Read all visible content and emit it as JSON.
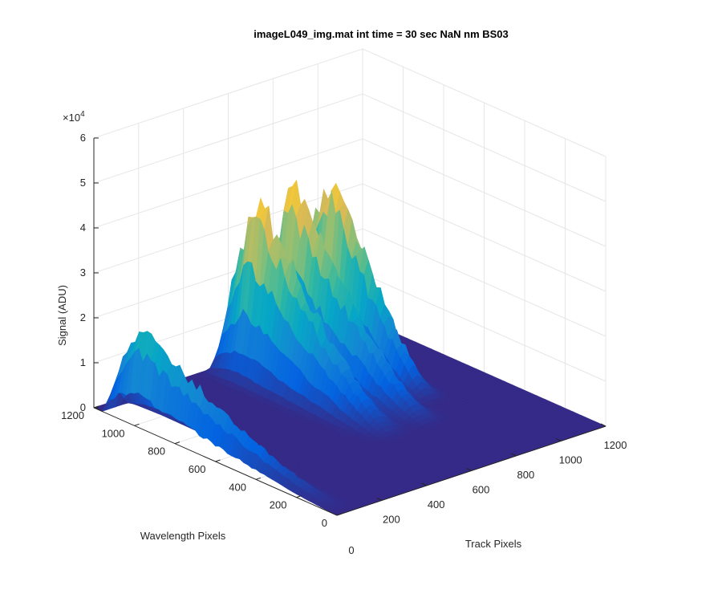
{
  "chart_data": {
    "type": "surface",
    "title": "imageL049_img.mat int time = 30 sec  NaN nm BS03",
    "xlabel": "Track Pixels",
    "ylabel": "Wavelength Pixels",
    "zlabel": "Signal (ADU)",
    "z_exponent_label": "×10",
    "z_exponent_power": "4",
    "xlim": [
      0,
      1200
    ],
    "ylim": [
      0,
      1200
    ],
    "zlim": [
      0,
      60000
    ],
    "x_ticks": [
      "200",
      "400",
      "600",
      "800",
      "1000",
      "1200"
    ],
    "x_tick_values": [
      200,
      400,
      600,
      800,
      1000,
      1200
    ],
    "x_zero_label": "0",
    "y_ticks": [
      "0",
      "200",
      "400",
      "600",
      "800",
      "1000",
      "1200"
    ],
    "y_tick_values": [
      0,
      200,
      400,
      600,
      800,
      1000,
      1200
    ],
    "z_ticks": [
      "0",
      "1",
      "2",
      "3",
      "4",
      "5",
      "6"
    ],
    "z_tick_values": [
      0,
      10000,
      20000,
      30000,
      40000,
      50000,
      60000
    ],
    "grid": true,
    "colormap": "parula",
    "colors": [
      "#352a87",
      "#0363e1",
      "#1485d4",
      "#06a7c6",
      "#38b99e",
      "#92bf73",
      "#d9ba56",
      "#fcce2e",
      "#f9fb0e"
    ],
    "peaks": [
      {
        "x_center": 40,
        "x_width": 60,
        "y_start": 0,
        "y_end": 1150,
        "y_peak": 1000,
        "height": 21000
      },
      {
        "x_center": 600,
        "x_width": 90,
        "y_start": 350,
        "y_end": 1200,
        "y_peak": 1050,
        "height": 41000
      },
      {
        "x_center": 760,
        "x_width": 80,
        "y_start": 350,
        "y_end": 1200,
        "y_peak": 1050,
        "height": 41000
      },
      {
        "x_center": 900,
        "x_width": 70,
        "y_start": 500,
        "y_end": 1200,
        "y_peak": 1000,
        "height": 43500
      }
    ]
  }
}
